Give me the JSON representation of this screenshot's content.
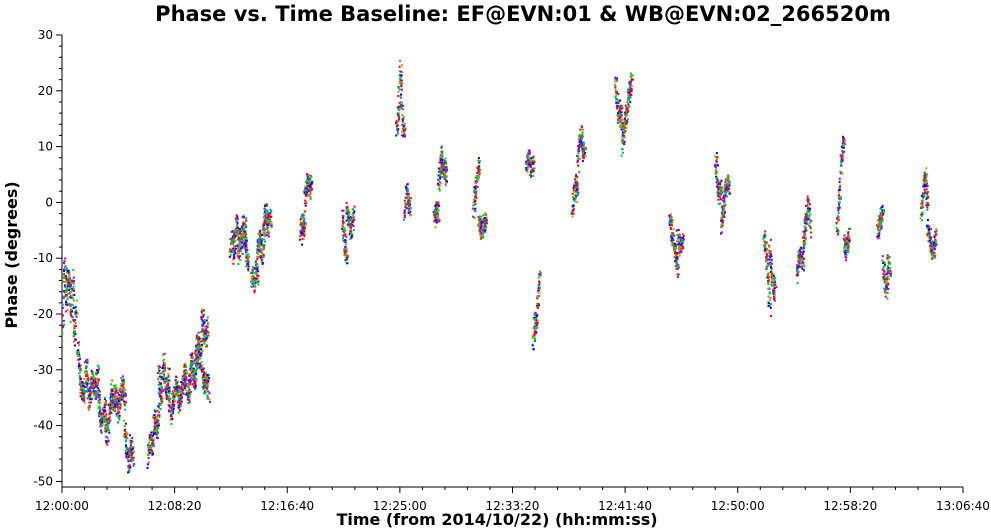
{
  "chart_data": {
    "type": "scatter",
    "title": "Phase vs. Time Baseline: EF@EVN:01 & WB@EVN:02_266520m",
    "xlabel": "Time (from 2014/10/22) (hh:mm:ss)",
    "ylabel": "Phase (degrees)",
    "xlim_minutes": [
      0,
      66.667
    ],
    "ylim": [
      -51,
      30
    ],
    "x_ticks": [
      {
        "value": 0,
        "label": "12:00:00"
      },
      {
        "value": 8.333,
        "label": "12:08:20"
      },
      {
        "value": 16.667,
        "label": "12:16:40"
      },
      {
        "value": 25,
        "label": "12:25:00"
      },
      {
        "value": 33.333,
        "label": "12:33:20"
      },
      {
        "value": 41.667,
        "label": "12:41:40"
      },
      {
        "value": 50,
        "label": "12:50:00"
      },
      {
        "value": 58.333,
        "label": "12:58:20"
      },
      {
        "value": 66.667,
        "label": "13:06:40"
      }
    ],
    "y_ticks": [
      {
        "value": 30,
        "label": "30"
      },
      {
        "value": 20,
        "label": "20"
      },
      {
        "value": 10,
        "label": "10"
      },
      {
        "value": 0,
        "label": "0"
      },
      {
        "value": -10,
        "label": "-10"
      },
      {
        "value": -20,
        "label": "-20"
      },
      {
        "value": -30,
        "label": "-30"
      },
      {
        "value": -40,
        "label": "-40"
      },
      {
        "value": -50,
        "label": "-50"
      }
    ],
    "grid": false,
    "marker_colors": [
      "#0000ff",
      "#00cc00",
      "#ff0000",
      "#9900cc",
      "#00aaaa",
      "#dd8800"
    ],
    "scans": [
      {
        "t": [
          0.0,
          1.0
        ],
        "phase": [
          -22,
          -10,
          -18,
          -12,
          -15,
          -20,
          -13,
          -25,
          -18
        ]
      },
      {
        "t": [
          1.1,
          2.6
        ],
        "phase": [
          -25,
          -32,
          -35,
          -29,
          -36,
          -31,
          -34,
          -30
        ]
      },
      {
        "t": [
          2.6,
          3.6
        ],
        "phase": [
          -33,
          -38,
          -40,
          -36,
          -42,
          -38,
          -35
        ]
      },
      {
        "t": [
          3.6,
          4.6
        ],
        "phase": [
          -33,
          -36,
          -34,
          -38,
          -35,
          -32,
          -36
        ]
      },
      {
        "t": [
          4.6,
          5.2
        ],
        "phase": [
          -40,
          -44,
          -47,
          -43,
          -46
        ]
      },
      {
        "t": [
          6.3,
          7.1
        ],
        "phase": [
          -46,
          -42,
          -44,
          -38,
          -41,
          -37
        ]
      },
      {
        "t": [
          7.1,
          7.8
        ],
        "phase": [
          -30,
          -36,
          -28,
          -34,
          -31
        ]
      },
      {
        "t": [
          7.8,
          8.8
        ],
        "phase": [
          -33,
          -38,
          -35,
          -32,
          -36,
          -33
        ]
      },
      {
        "t": [
          8.8,
          10.0
        ],
        "phase": [
          -34,
          -30,
          -35,
          -28,
          -32,
          -26
        ]
      },
      {
        "t": [
          9.8,
          10.7
        ],
        "phase": [
          -28,
          -24,
          -29,
          -20,
          -25,
          -22
        ]
      },
      {
        "t": [
          10.3,
          10.8
        ],
        "phase": [
          -30,
          -32,
          -33,
          -31,
          -34
        ]
      },
      {
        "t": [
          12.4,
          13.0
        ],
        "phase": [
          -8,
          -5,
          -10,
          -6,
          -3,
          -9
        ]
      },
      {
        "t": [
          13.0,
          13.4
        ],
        "phase": [
          -10,
          -5,
          -8,
          -3,
          -6
        ]
      },
      {
        "t": [
          13.4,
          13.7
        ],
        "phase": [
          -7,
          -4,
          -9,
          -11
        ]
      },
      {
        "t": [
          14.0,
          14.4
        ],
        "phase": [
          -14,
          -12,
          -15,
          -11,
          -13
        ]
      },
      {
        "t": [
          14.4,
          14.9
        ],
        "phase": [
          -9,
          -6,
          -10,
          -5
        ]
      },
      {
        "t": [
          14.9,
          15.4
        ],
        "phase": [
          -4,
          -1,
          -5,
          -2,
          -3
        ]
      },
      {
        "t": [
          17.6,
          17.9
        ],
        "phase": [
          -6,
          -3,
          -5,
          -2
        ]
      },
      {
        "t": [
          17.9,
          18.4
        ],
        "phase": [
          1,
          3,
          4,
          2,
          5
        ]
      },
      {
        "t": [
          20.7,
          21.0
        ],
        "phase": [
          -2,
          -5,
          -8,
          -10
        ]
      },
      {
        "t": [
          21.0,
          21.5
        ],
        "phase": [
          -1,
          -3,
          -5,
          -2
        ]
      },
      {
        "t": [
          24.7,
          25.3
        ],
        "phase": [
          13,
          16,
          25,
          14,
          12
        ]
      },
      {
        "t": [
          25.3,
          25.7
        ],
        "phase": [
          -2,
          1,
          3,
          0,
          -1
        ]
      },
      {
        "t": [
          27.5,
          27.8
        ],
        "phase": [
          -3,
          -1,
          -2
        ]
      },
      {
        "t": [
          27.8,
          28.4
        ],
        "phase": [
          3,
          6,
          9,
          5,
          7,
          4
        ]
      },
      {
        "t": [
          30.4,
          30.8
        ],
        "phase": [
          -1,
          2,
          5,
          7
        ]
      },
      {
        "t": [
          30.8,
          31.3
        ],
        "phase": [
          -3,
          -5,
          -4,
          -3
        ]
      },
      {
        "t": [
          34.3,
          34.8
        ],
        "phase": [
          7,
          8,
          6,
          7
        ]
      },
      {
        "t": [
          34.8,
          35.3
        ],
        "phase": [
          -26,
          -20,
          -22,
          -16,
          -13
        ]
      },
      {
        "t": [
          37.7,
          38.1
        ],
        "phase": [
          -1,
          2,
          4,
          1
        ]
      },
      {
        "t": [
          38.1,
          38.6
        ],
        "phase": [
          7,
          11,
          13,
          9,
          10
        ]
      },
      {
        "t": [
          40.9,
          41.4
        ],
        "phase": [
          22,
          18,
          15,
          17,
          14
        ]
      },
      {
        "t": [
          41.4,
          42.1
        ],
        "phase": [
          10,
          14,
          17,
          20,
          22
        ]
      },
      {
        "t": [
          44.9,
          45.5
        ],
        "phase": [
          -2,
          -5,
          -7,
          -10,
          -12
        ]
      },
      {
        "t": [
          45.5,
          45.9
        ],
        "phase": [
          -6,
          -8,
          -7
        ]
      },
      {
        "t": [
          48.3,
          48.7
        ],
        "phase": [
          8,
          4,
          1,
          3
        ]
      },
      {
        "t": [
          48.7,
          49.3
        ],
        "phase": [
          -4,
          -1,
          2,
          4,
          3
        ]
      },
      {
        "t": [
          51.9,
          52.3
        ],
        "phase": [
          -6,
          -8,
          -10,
          -14,
          -19
        ]
      },
      {
        "t": [
          52.3,
          52.7
        ],
        "phase": [
          -8,
          -12,
          -16,
          -14
        ]
      },
      {
        "t": [
          54.3,
          54.8
        ],
        "phase": [
          -13,
          -10,
          -9,
          -11
        ]
      },
      {
        "t": [
          54.8,
          55.3
        ],
        "phase": [
          -7,
          -4,
          -2,
          0,
          -5
        ]
      },
      {
        "t": [
          57.3,
          57.8
        ],
        "phase": [
          -5,
          0,
          5,
          10,
          11
        ]
      },
      {
        "t": [
          57.8,
          58.2
        ],
        "phase": [
          -6,
          -9,
          -7,
          -5
        ]
      },
      {
        "t": [
          60.3,
          60.7
        ],
        "phase": [
          -5,
          -3,
          -1
        ]
      },
      {
        "t": [
          60.7,
          61.2
        ],
        "phase": [
          -11,
          -14,
          -16,
          -10,
          -12
        ]
      },
      {
        "t": [
          63.5,
          64.0
        ],
        "phase": [
          -2,
          2,
          5,
          0
        ]
      },
      {
        "t": [
          64.0,
          64.6
        ],
        "phase": [
          -4,
          -7,
          -9,
          -6
        ]
      }
    ]
  }
}
